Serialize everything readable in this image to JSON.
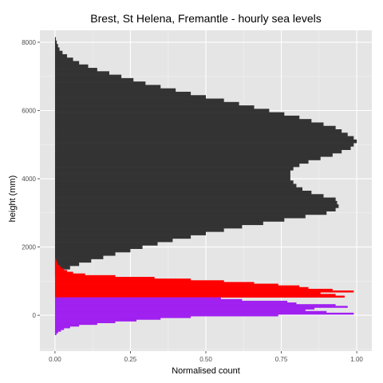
{
  "chart_data": {
    "type": "bar",
    "orientation": "horizontal",
    "title": "Brest, St Helena, Fremantle - hourly sea levels",
    "xlabel": "Normalised count",
    "ylabel": "height (mm)",
    "xlim": [
      -0.05,
      1.05
    ],
    "ylim": [
      -1050,
      8350
    ],
    "x_ticks": [
      0,
      0.25,
      0.5,
      0.75,
      1.0
    ],
    "x_tick_labels": [
      "0.00",
      "0.25",
      "0.50",
      "0.75",
      "1.00"
    ],
    "y_ticks": [
      0,
      2000,
      4000,
      6000,
      8000
    ],
    "y_tick_labels": [
      "0",
      "2000",
      "4000",
      "6000",
      "8000"
    ],
    "grid": true,
    "legend": "none",
    "colors": {
      "panel_bg": "#e5e5e5",
      "grid_major": "#ffffff",
      "grid_minor": "#f2f2f2",
      "tick_text": "#4d4d4d",
      "tick_mark": "#333333"
    },
    "series": [
      {
        "color": "#333333",
        "bin_width": 100,
        "points": [
          [
            1200,
            0.02
          ],
          [
            1300,
            0.03
          ],
          [
            1400,
            0.05
          ],
          [
            1500,
            0.08
          ],
          [
            1600,
            0.12
          ],
          [
            1700,
            0.16
          ],
          [
            1800,
            0.2
          ],
          [
            1900,
            0.25
          ],
          [
            2000,
            0.29
          ],
          [
            2100,
            0.34
          ],
          [
            2200,
            0.39
          ],
          [
            2300,
            0.45
          ],
          [
            2400,
            0.5
          ],
          [
            2500,
            0.56
          ],
          [
            2600,
            0.62
          ],
          [
            2700,
            0.69
          ],
          [
            2800,
            0.76
          ],
          [
            2900,
            0.83
          ],
          [
            3000,
            0.9
          ],
          [
            3100,
            0.93
          ],
          [
            3200,
            0.94
          ],
          [
            3300,
            0.935
          ],
          [
            3400,
            0.93
          ],
          [
            3500,
            0.89
          ],
          [
            3600,
            0.85
          ],
          [
            3700,
            0.82
          ],
          [
            3800,
            0.8
          ],
          [
            3900,
            0.79
          ],
          [
            4000,
            0.78
          ],
          [
            4100,
            0.78
          ],
          [
            4200,
            0.78
          ],
          [
            4300,
            0.79
          ],
          [
            4400,
            0.81
          ],
          [
            4500,
            0.84
          ],
          [
            4600,
            0.88
          ],
          [
            4700,
            0.92
          ],
          [
            4800,
            0.95
          ],
          [
            4900,
            0.98
          ],
          [
            5000,
            0.99
          ],
          [
            5100,
            1.0
          ],
          [
            5200,
            0.99
          ],
          [
            5300,
            0.97
          ],
          [
            5400,
            0.95
          ],
          [
            5500,
            0.93
          ],
          [
            5600,
            0.89
          ],
          [
            5700,
            0.85
          ],
          [
            5800,
            0.81
          ],
          [
            5900,
            0.76
          ],
          [
            6000,
            0.71
          ],
          [
            6100,
            0.66
          ],
          [
            6200,
            0.61
          ],
          [
            6300,
            0.56
          ],
          [
            6400,
            0.5
          ],
          [
            6500,
            0.45
          ],
          [
            6600,
            0.4
          ],
          [
            6700,
            0.35
          ],
          [
            6800,
            0.3
          ],
          [
            6900,
            0.26
          ],
          [
            7000,
            0.22
          ],
          [
            7100,
            0.18
          ],
          [
            7200,
            0.14
          ],
          [
            7300,
            0.11
          ],
          [
            7400,
            0.08
          ],
          [
            7500,
            0.06
          ],
          [
            7600,
            0.04
          ],
          [
            7700,
            0.025
          ],
          [
            7800,
            0.015
          ],
          [
            7900,
            0.01
          ],
          [
            8000,
            0.006
          ],
          [
            8100,
            0.003
          ]
        ]
      },
      {
        "color": "#ff0000",
        "bin_width": 50,
        "points": [
          [
            550,
            0.96
          ],
          [
            600,
            0.93
          ],
          [
            650,
            0.88
          ],
          [
            700,
            0.99
          ],
          [
            750,
            0.92
          ],
          [
            800,
            0.84
          ],
          [
            850,
            0.81
          ],
          [
            900,
            0.74
          ],
          [
            950,
            0.66
          ],
          [
            1000,
            0.56
          ],
          [
            1050,
            0.45
          ],
          [
            1100,
            0.33
          ],
          [
            1150,
            0.2
          ],
          [
            1200,
            0.1
          ],
          [
            1250,
            0.06
          ],
          [
            1300,
            0.04
          ],
          [
            1350,
            0.03
          ],
          [
            1400,
            0.02
          ],
          [
            1450,
            0.015
          ],
          [
            1500,
            0.01
          ],
          [
            1550,
            0.008
          ],
          [
            1600,
            0.005
          ],
          [
            1650,
            0.003
          ]
        ]
      },
      {
        "color": "#a020f0",
        "bin_width": 50,
        "points": [
          [
            -550,
            0.005
          ],
          [
            -500,
            0.01
          ],
          [
            -450,
            0.02
          ],
          [
            -400,
            0.03
          ],
          [
            -350,
            0.05
          ],
          [
            -300,
            0.08
          ],
          [
            -250,
            0.14
          ],
          [
            -200,
            0.2
          ],
          [
            -150,
            0.27
          ],
          [
            -100,
            0.35
          ],
          [
            -50,
            0.45
          ],
          [
            0,
            0.74
          ],
          [
            50,
            0.99
          ],
          [
            100,
            0.9
          ],
          [
            150,
            0.83
          ],
          [
            200,
            0.86
          ],
          [
            250,
            0.97
          ],
          [
            300,
            0.93
          ],
          [
            350,
            0.8
          ],
          [
            400,
            0.77
          ],
          [
            450,
            0.62
          ],
          [
            500,
            0.55
          ]
        ]
      }
    ]
  }
}
